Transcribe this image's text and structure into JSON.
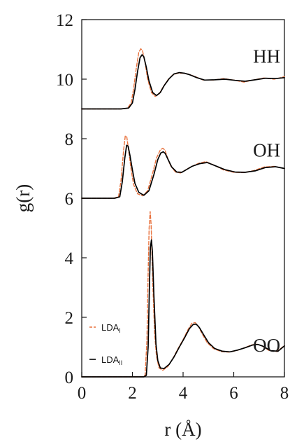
{
  "chart_data": {
    "type": "line",
    "xlabel": "r (Å)",
    "ylabel": "g(r)",
    "xlim": [
      0,
      8
    ],
    "ylim": [
      0,
      12
    ],
    "xticks": [
      0,
      2,
      4,
      6,
      8
    ],
    "yticks": [
      0,
      2,
      4,
      6,
      8,
      10,
      12
    ],
    "grid": false,
    "legend_placement": "bottom-left",
    "panel_labels": [
      {
        "text": "HH",
        "x": 7.3,
        "y": 10.55
      },
      {
        "text": "OH",
        "x": 7.3,
        "y": 7.4
      },
      {
        "text": "OO",
        "x": 7.3,
        "y": 0.85
      }
    ],
    "legend": [
      {
        "label": "LDA",
        "subscript": "I",
        "color": "#e8713c",
        "dash": "dashed"
      },
      {
        "label": "LDA",
        "subscript": "II",
        "color": "#000000",
        "dash": "solid"
      }
    ],
    "series": [
      {
        "group": "HH",
        "variant": "LDA_I",
        "color": "#e8713c",
        "dash": "dashed",
        "x": [
          0,
          1.5,
          1.8,
          1.95,
          2.05,
          2.15,
          2.25,
          2.33,
          2.4,
          2.5,
          2.6,
          2.75,
          2.9,
          3.05,
          3.2,
          3.4,
          3.6,
          3.8,
          4.0,
          4.2,
          4.5,
          4.8,
          5.2,
          5.6,
          6.0,
          6.4,
          6.8,
          7.2,
          7.6,
          8.0
        ],
        "y": [
          9.0,
          9.0,
          9.02,
          9.2,
          9.7,
          10.35,
          10.9,
          11.02,
          10.95,
          10.55,
          10.0,
          9.55,
          9.42,
          9.5,
          9.72,
          9.98,
          10.15,
          10.2,
          10.2,
          10.17,
          10.08,
          9.97,
          9.97,
          10.02,
          9.97,
          9.9,
          9.98,
          10.04,
          10.0,
          10.08
        ]
      },
      {
        "group": "HH",
        "variant": "LDA_II",
        "color": "#000000",
        "dash": "solid",
        "x": [
          0,
          1.55,
          1.85,
          2.0,
          2.1,
          2.2,
          2.3,
          2.38,
          2.45,
          2.55,
          2.65,
          2.8,
          2.95,
          3.1,
          3.25,
          3.45,
          3.65,
          3.85,
          4.05,
          4.25,
          4.55,
          4.85,
          5.25,
          5.65,
          6.05,
          6.45,
          6.85,
          7.25,
          7.65,
          8.0
        ],
        "y": [
          9.0,
          9.0,
          9.03,
          9.2,
          9.65,
          10.25,
          10.72,
          10.82,
          10.75,
          10.4,
          9.95,
          9.55,
          9.45,
          9.55,
          9.78,
          10.02,
          10.18,
          10.22,
          10.2,
          10.15,
          10.05,
          9.97,
          9.98,
          10.0,
          9.96,
          9.93,
          9.98,
          10.03,
          10.02,
          10.05
        ]
      },
      {
        "group": "OH",
        "variant": "LDA_I",
        "color": "#e8713c",
        "dash": "dashed",
        "x": [
          0,
          1.25,
          1.45,
          1.55,
          1.65,
          1.72,
          1.78,
          1.85,
          1.95,
          2.05,
          2.2,
          2.4,
          2.6,
          2.8,
          2.95,
          3.1,
          3.2,
          3.28,
          3.35,
          3.5,
          3.7,
          3.9,
          4.1,
          4.3,
          4.6,
          4.9,
          5.2,
          5.6,
          6.0,
          6.4,
          6.8,
          7.2,
          7.6,
          8.0
        ],
        "y": [
          6.0,
          6.0,
          6.05,
          6.6,
          7.6,
          8.1,
          8.05,
          7.6,
          6.95,
          6.45,
          6.15,
          6.08,
          6.25,
          6.85,
          7.35,
          7.62,
          7.68,
          7.62,
          7.45,
          7.1,
          6.88,
          6.85,
          6.95,
          7.05,
          7.17,
          7.23,
          7.12,
          6.95,
          6.87,
          6.86,
          6.93,
          7.05,
          7.07,
          7.0
        ]
      },
      {
        "group": "OH",
        "variant": "LDA_II",
        "color": "#000000",
        "dash": "solid",
        "x": [
          0,
          1.3,
          1.5,
          1.6,
          1.7,
          1.77,
          1.83,
          1.9,
          2.0,
          2.1,
          2.25,
          2.45,
          2.65,
          2.85,
          3.0,
          3.12,
          3.22,
          3.3,
          3.38,
          3.55,
          3.75,
          3.95,
          4.15,
          4.35,
          4.65,
          4.95,
          5.25,
          5.65,
          6.05,
          6.45,
          6.85,
          7.25,
          7.65,
          8.0
        ],
        "y": [
          6.0,
          6.0,
          6.05,
          6.55,
          7.35,
          7.78,
          7.75,
          7.45,
          6.95,
          6.5,
          6.2,
          6.1,
          6.25,
          6.8,
          7.3,
          7.52,
          7.56,
          7.5,
          7.35,
          7.05,
          6.88,
          6.87,
          6.97,
          7.07,
          7.16,
          7.2,
          7.1,
          6.96,
          6.88,
          6.87,
          6.92,
          7.03,
          7.06,
          7.0
        ]
      },
      {
        "group": "OO",
        "variant": "LDA_I",
        "color": "#e8713c",
        "dash": "dashed",
        "x": [
          0,
          2.4,
          2.5,
          2.57,
          2.62,
          2.66,
          2.7,
          2.74,
          2.8,
          2.88,
          2.95,
          3.05,
          3.2,
          3.4,
          3.6,
          3.8,
          4.0,
          4.2,
          4.35,
          4.48,
          4.6,
          4.75,
          4.95,
          5.2,
          5.5,
          5.8,
          6.1,
          6.4,
          6.7,
          6.9,
          7.1,
          7.4,
          7.7,
          8.0
        ],
        "y": [
          0.0,
          0.0,
          0.05,
          1.2,
          3.5,
          5.0,
          5.55,
          5.1,
          3.2,
          1.4,
          0.7,
          0.3,
          0.22,
          0.35,
          0.62,
          0.95,
          1.25,
          1.6,
          1.8,
          1.82,
          1.7,
          1.45,
          1.15,
          0.95,
          0.85,
          0.83,
          0.88,
          0.97,
          1.07,
          1.1,
          1.05,
          0.88,
          0.85,
          1.05
        ]
      },
      {
        "group": "OO",
        "variant": "LDA_II",
        "color": "#000000",
        "dash": "solid",
        "x": [
          0,
          2.45,
          2.55,
          2.62,
          2.67,
          2.71,
          2.75,
          2.79,
          2.85,
          2.93,
          3.0,
          3.1,
          3.25,
          3.45,
          3.65,
          3.85,
          4.05,
          4.25,
          4.4,
          4.52,
          4.64,
          4.8,
          5.0,
          5.25,
          5.55,
          5.85,
          6.15,
          6.45,
          6.75,
          6.95,
          7.15,
          7.45,
          7.75,
          8.0
        ],
        "y": [
          0.0,
          0.0,
          0.05,
          1.0,
          3.0,
          4.35,
          4.6,
          4.2,
          2.7,
          1.1,
          0.55,
          0.3,
          0.28,
          0.42,
          0.68,
          1.0,
          1.3,
          1.62,
          1.76,
          1.77,
          1.66,
          1.43,
          1.15,
          0.95,
          0.86,
          0.84,
          0.9,
          0.98,
          1.07,
          1.09,
          1.03,
          0.88,
          0.86,
          1.04
        ]
      }
    ]
  }
}
